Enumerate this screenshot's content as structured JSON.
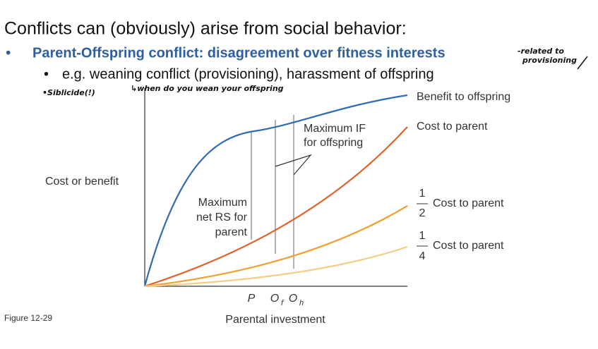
{
  "slide": {
    "title": "Conflicts can (obviously) arise from social behavior:",
    "bullet": "Parent-Offspring conflict: disagreement over fitness interests",
    "sub_bullet": "e.g. weaning conflict (provisioning), harassment of offspring"
  },
  "annotations": {
    "related": "-related to",
    "provisioning": "provisioning",
    "siblicide": "•Siblicide(!)",
    "wean": "↳when do you wean your offspring"
  },
  "figure": {
    "y_label": "Cost or benefit",
    "x_label": "Parental investment",
    "benefit_label": "Benefit to offspring",
    "cost_label": "Cost to parent",
    "half": {
      "numerator": "1",
      "denominator": "2",
      "label": "Cost to parent"
    },
    "quarter": {
      "numerator": "1",
      "denominator": "4",
      "label": "Cost to parent"
    },
    "callout_if": [
      "Maximum IF",
      "for offspring"
    ],
    "callout_rs": [
      "Maximum",
      "net RS for",
      "parent"
    ],
    "ticks": {
      "p": "P",
      "of": "O",
      "of_sub": "f",
      "oh": "O",
      "oh_sub": "h"
    },
    "caption": "Figure 12-29"
  }
}
